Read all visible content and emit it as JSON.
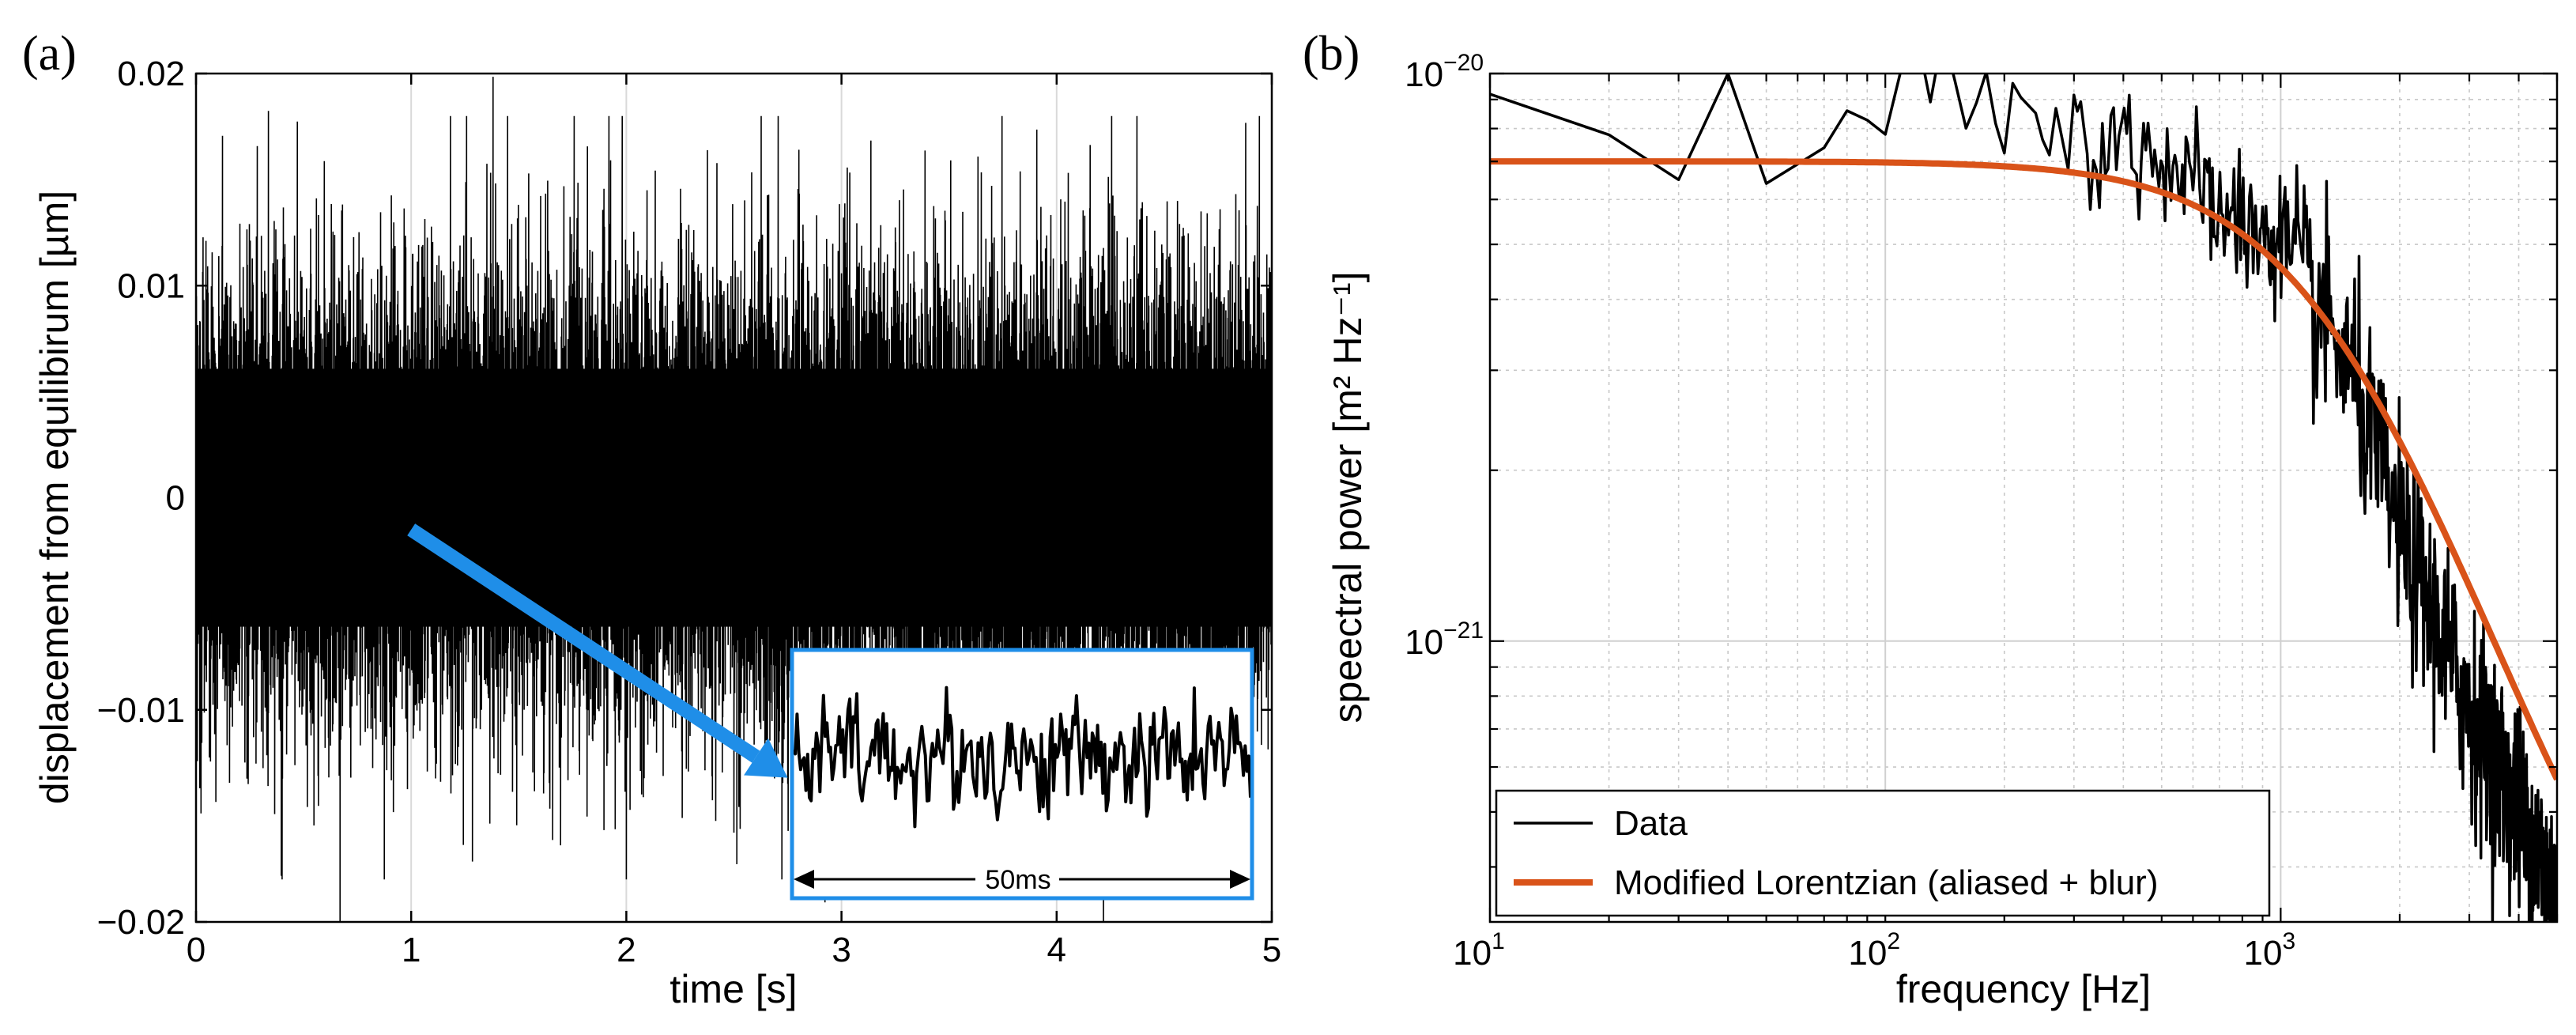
{
  "chart_data": [
    {
      "panel": "(a)",
      "type": "line",
      "xlabel": "time [s]",
      "ylabel": "displacement from equilibirum [µm]",
      "xlim": [
        0,
        5
      ],
      "ylim": [
        -0.02,
        0.02
      ],
      "xticks": [
        0,
        1,
        2,
        3,
        4,
        5
      ],
      "xtick_labels": [
        "0",
        "1",
        "2",
        "3",
        "4",
        "5"
      ],
      "yticks": [
        -0.02,
        -0.01,
        0,
        0.01,
        0.02
      ],
      "ytick_labels": [
        "−0.02",
        "−0.01",
        "0",
        "0.01",
        "0.02"
      ],
      "grid": "x",
      "series": [
        {
          "name": "displacement",
          "color": "#000000",
          "typical_std": 0.0038,
          "peak_abs": 0.018
        }
      ],
      "inset": {
        "label": "50ms",
        "span_s": 0.05,
        "border_color": "#1f8ee8",
        "arrow_color": "#1f8ee8",
        "arrow_from": [
          1.0,
          -0.0015
        ],
        "arrow_to": [
          2.75,
          -0.0132
        ]
      }
    },
    {
      "panel": "(b)",
      "type": "line",
      "xscale": "log",
      "yscale": "log",
      "xlabel": "frequency [Hz]",
      "ylabel": "speectral power [m² Hz⁻¹]",
      "xlim": [
        10,
        5000
      ],
      "ylim": [
        3.2e-22,
        1e-20
      ],
      "xticks": [
        10,
        100,
        1000
      ],
      "xtick_labels": [
        {
          "base": "10",
          "exp": "1"
        },
        {
          "base": "10",
          "exp": "2"
        },
        {
          "base": "10",
          "exp": "3"
        }
      ],
      "yticks": [
        1e-21,
        1e-20
      ],
      "ytick_labels": [
        {
          "base": "10",
          "exp": "−21"
        },
        {
          "base": "10",
          "exp": "−20"
        }
      ],
      "grid": "major+minor",
      "series": [
        {
          "name": "Data",
          "color": "#000000",
          "x": [
            10,
            20,
            30,
            40,
            50,
            70,
            80,
            100,
            150,
            300,
            500,
            700,
            1000,
            1500,
            2000,
            3000,
            4000,
            5000
          ],
          "y": [
            9.2e-21,
            7.8e-21,
            6.5e-21,
            1e-20,
            6.4e-21,
            7.4e-21,
            8.6e-21,
            8e-21,
            8.6e-21,
            7.8e-21,
            7.2e-21,
            5.7e-21,
            5e-21,
            3e-21,
            1.55e-21,
            7.6e-22,
            5e-22,
            3.5e-22
          ]
        },
        {
          "name": "Modified Lorentzian (aliased + blur)",
          "color": "#d95319",
          "model": {
            "type": "lorentzian",
            "S0": 7e-21,
            "fc": 1350,
            "floor": 3.5e-22,
            "x_start": 10,
            "x_end": 5000
          }
        }
      ],
      "legend": {
        "position": "bottom-left",
        "entries": [
          "Data",
          "Modified Lorentzian (aliased + blur)"
        ]
      }
    }
  ]
}
